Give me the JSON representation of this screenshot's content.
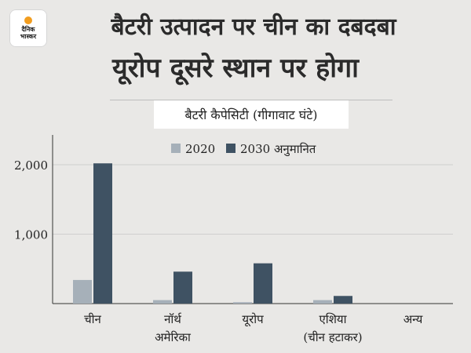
{
  "branding": {
    "logo_line1": "दैनिक",
    "logo_line2": "भास्कर"
  },
  "headline": {
    "line1": "बैटरी उत्पादन पर चीन का दबदबा",
    "line2": "यूरोप दूसरे स्थान पर होगा"
  },
  "chart_data": {
    "type": "bar",
    "title": "बैटरी कैपेसिटी (गीगावाट घंटे)",
    "categories": [
      [
        "चीन"
      ],
      [
        "नॉर्थ",
        "अमेरिका"
      ],
      [
        "यूरोप"
      ],
      [
        "एशिया",
        "(चीन हटाकर)"
      ],
      [
        "अन्य"
      ]
    ],
    "series": [
      {
        "name": "2020",
        "values": [
          340,
          50,
          20,
          50,
          0
        ],
        "color": "#a6b0b9"
      },
      {
        "name": "2030 अनुमानित",
        "values": [
          2020,
          460,
          580,
          110,
          0
        ],
        "color": "#3f5263"
      }
    ],
    "yticks": [
      1000,
      2000
    ],
    "ytick_labels": [
      "1,000",
      "2,000"
    ],
    "ylim": [
      0,
      2500
    ],
    "grid": true,
    "legend": "top-center"
  },
  "colors": {
    "background": "#e9e8e6",
    "axis": "#333333",
    "grid": "#cfcfcf"
  }
}
